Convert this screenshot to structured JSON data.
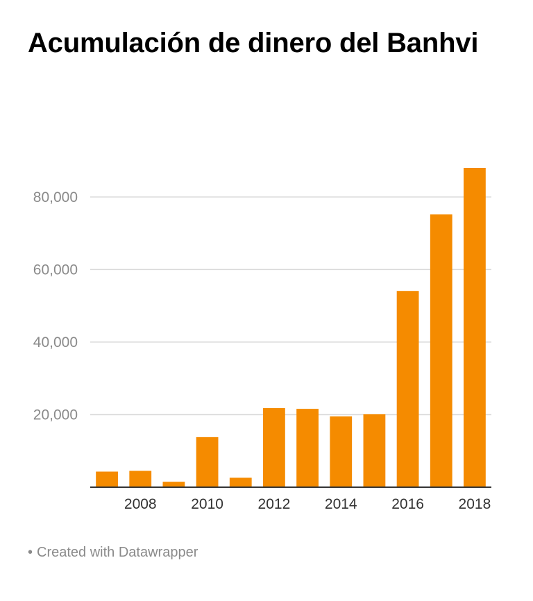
{
  "chart_data": {
    "type": "bar",
    "title": "Acumulación de dinero del Banhvi",
    "categories": [
      "2007",
      "2008",
      "2009",
      "2010",
      "2011",
      "2012",
      "2013",
      "2014",
      "2015",
      "2016",
      "2017",
      "2018"
    ],
    "values": [
      4300,
      4500,
      1500,
      13800,
      2600,
      21800,
      21600,
      19500,
      20100,
      54100,
      75200,
      88000
    ],
    "x_tick_labels": [
      "2008",
      "2010",
      "2012",
      "2014",
      "2016",
      "2018"
    ],
    "y_ticks": [
      20000,
      40000,
      60000,
      80000
    ],
    "y_tick_labels": [
      "20,000",
      "40,000",
      "60,000",
      "80,000"
    ],
    "ylim": [
      0,
      88000
    ],
    "xlabel": "",
    "ylabel": "",
    "grid": true,
    "bar_color": "#f58b00"
  },
  "footer": {
    "bullet": "•",
    "text": "Created with Datawrapper"
  },
  "colors": {
    "grid": "#d9d9d9",
    "axis": "#333333",
    "ytick_text": "#8a8a8a",
    "xtick_text": "#333333"
  }
}
